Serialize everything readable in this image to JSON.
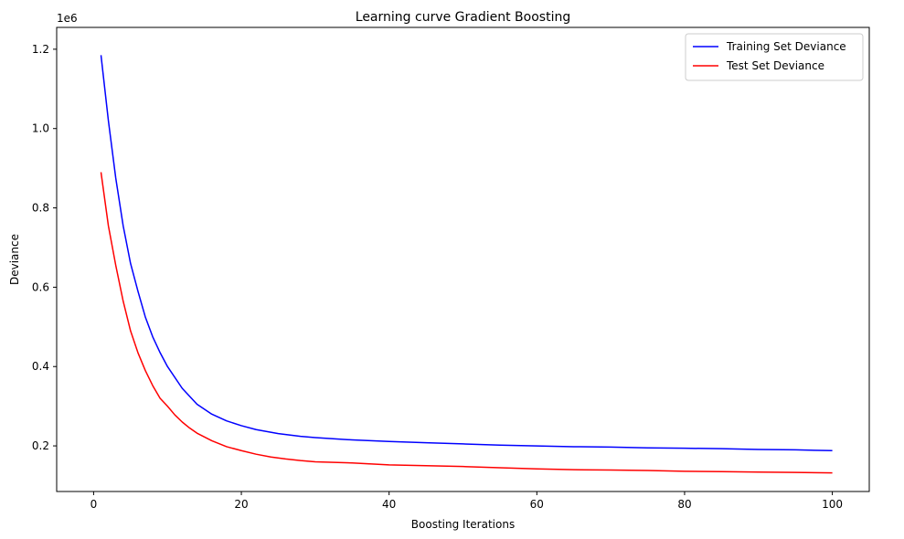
{
  "chart_data": {
    "type": "line",
    "title": "Learning curve Gradient Boosting",
    "xlabel": "Boosting Iterations",
    "ylabel": "Deviance",
    "y_offset_label": "1e6",
    "xlim": [
      -5,
      105
    ],
    "ylim": [
      0.085,
      1.255
    ],
    "x_ticks": [
      0,
      20,
      40,
      60,
      80,
      100
    ],
    "x_tick_labels": [
      "0",
      "20",
      "40",
      "60",
      "80",
      "100"
    ],
    "y_ticks": [
      0.2,
      0.4,
      0.6,
      0.8,
      1.0,
      1.2
    ],
    "y_tick_labels": [
      "0.2",
      "0.4",
      "0.6",
      "0.8",
      "1.0",
      "1.2"
    ],
    "grid": false,
    "legend_position": "top-right",
    "series": [
      {
        "name": "Training Set Deviance",
        "color": "#0000ff",
        "x": [
          1,
          2,
          3,
          4,
          5,
          6,
          7,
          8,
          9,
          10,
          12,
          14,
          16,
          18,
          20,
          22,
          25,
          28,
          30,
          35,
          40,
          45,
          50,
          55,
          60,
          65,
          70,
          75,
          80,
          85,
          90,
          95,
          100
        ],
        "values": [
          1.185,
          1.02,
          0.875,
          0.755,
          0.66,
          0.59,
          0.525,
          0.475,
          0.435,
          0.4,
          0.345,
          0.305,
          0.28,
          0.263,
          0.251,
          0.241,
          0.231,
          0.224,
          0.221,
          0.215,
          0.211,
          0.208,
          0.205,
          0.202,
          0.2,
          0.198,
          0.197,
          0.195,
          0.194,
          0.193,
          0.191,
          0.19,
          0.188
        ]
      },
      {
        "name": "Test Set Deviance",
        "color": "#ff0000",
        "x": [
          1,
          2,
          3,
          4,
          5,
          6,
          7,
          8,
          9,
          10,
          11,
          12,
          13,
          14,
          16,
          18,
          20,
          22,
          24,
          26,
          28,
          30,
          35,
          40,
          45,
          50,
          55,
          60,
          65,
          70,
          75,
          80,
          85,
          90,
          95,
          100
        ],
        "values": [
          0.89,
          0.755,
          0.655,
          0.565,
          0.49,
          0.435,
          0.39,
          0.352,
          0.32,
          0.3,
          0.278,
          0.26,
          0.245,
          0.232,
          0.213,
          0.198,
          0.188,
          0.179,
          0.172,
          0.167,
          0.163,
          0.16,
          0.157,
          0.152,
          0.15,
          0.148,
          0.145,
          0.142,
          0.14,
          0.139,
          0.138,
          0.136,
          0.135,
          0.134,
          0.133,
          0.132
        ]
      }
    ]
  }
}
